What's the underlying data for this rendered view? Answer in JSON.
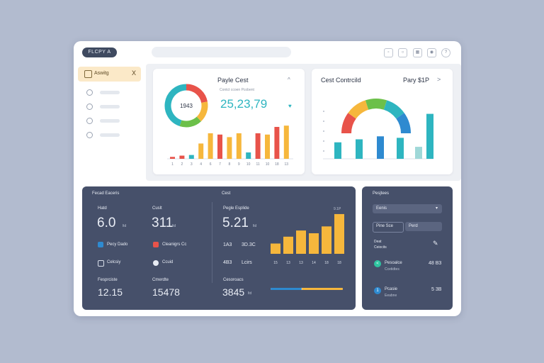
{
  "app": {
    "logo_label": "FLCPY A"
  },
  "toolbar": {
    "icons": [
      "bell-icon",
      "chat-icon",
      "calendar-icon",
      "help-icon"
    ]
  },
  "sidebar": {
    "active_item": {
      "label": "Aswitg",
      "icon": "folder-icon",
      "close": "X"
    }
  },
  "card_left": {
    "title": "Payle Cest",
    "subtitle": "Contct ccoen Pcobent",
    "donut_label": "1943",
    "big_value": "25,23,79",
    "chevron": "^",
    "chart_data": {
      "type": "bar",
      "categories": [
        "1",
        "2",
        "3",
        "4",
        "5",
        "6",
        "7",
        "8",
        "9",
        "10",
        "11",
        "12",
        "13"
      ],
      "values": [
        3,
        5,
        6,
        24,
        40,
        38,
        34,
        40,
        10,
        40,
        38,
        50,
        52
      ],
      "colors": [
        "#e8534a",
        "#e8534a",
        "#2eb5c0",
        "#f6b73c",
        "#f6b73c",
        "#e8534a",
        "#f6b73c",
        "#f6b73c",
        "#2eb5c0",
        "#e8534a",
        "#f6b73c",
        "#e8534a",
        "#f6b73c"
      ],
      "tick_labels": [
        "1",
        "2",
        "3",
        "4",
        "6",
        "7",
        "8",
        "9",
        "10",
        "11",
        "10",
        "18",
        "13"
      ],
      "ylim": [
        0,
        60
      ]
    },
    "donut_segments": [
      {
        "value": 0.22,
        "color": "#e8534a"
      },
      {
        "value": 0.16,
        "color": "#f6b73c"
      },
      {
        "value": 0.17,
        "color": "#6cc04a"
      },
      {
        "value": 0.45,
        "color": "#2eb5c0"
      }
    ]
  },
  "card_right": {
    "title": "Cest Contrcild",
    "value_label": "Pary $1P",
    "chevron": ">",
    "chart_data": {
      "type": "bar",
      "categories": [
        "1",
        "2",
        "3",
        "4",
        "5",
        "6"
      ],
      "values": [
        22,
        26,
        30,
        28,
        16,
        60
      ],
      "colors": [
        "#2eb5c0",
        "#2eb5c0",
        "#2e8ad0",
        "#2eb5c0",
        "#9fd8d8",
        "#2eb5c0"
      ],
      "ylim": [
        0,
        70
      ]
    },
    "gauge_segments": [
      "#e8534a",
      "#f6b73c",
      "#6cc04a",
      "#2eb5c0",
      "#2e8ad0"
    ]
  },
  "stats_panel": {
    "title": "Fecad Eaceris",
    "sub_title": "Cest",
    "stat1": {
      "label": "Hatd",
      "value": "6.0",
      "unit": "ltd"
    },
    "stat2": {
      "label": "Cuslt",
      "value": "311",
      "unit": "ltd"
    },
    "stat3": {
      "label": "Pegle Esplide",
      "value": "5.21",
      "unit": "ltd"
    },
    "row1": {
      "left_label": "Pecy Dado",
      "right_label": "Cleanigrs Cc"
    },
    "row2": {
      "left_label": "Celcsiy",
      "right_label": "Ccuid"
    },
    "mid_row1": {
      "left": "1A3",
      "right": "3D.3C"
    },
    "mid_row2": {
      "left": "4B3",
      "right": "Lcirs"
    },
    "stat4": {
      "label": "Fesprciste",
      "value": "12.15"
    },
    "stat5": {
      "label": "Cmerdte",
      "value": "15478"
    },
    "stat6": {
      "label": "Cesoroacs",
      "value": "3845",
      "unit": "ltd"
    },
    "mini_chart_label": "9.1P",
    "chart_data": {
      "type": "bar",
      "categories": [
        "15",
        "13",
        "13",
        "14",
        "18",
        "18"
      ],
      "values": [
        15,
        25,
        34,
        30,
        40,
        58
      ],
      "ylim": [
        0,
        60
      ]
    },
    "progress": 0.72
  },
  "side_panel": {
    "title": "Pesjtees",
    "select_value": "Eenis",
    "field1": "Pine Sce",
    "field2": "Perd",
    "section_label": "Deat\nCeiocits",
    "edit_icon": "pencil-icon",
    "item1": {
      "name": "Pesoalce",
      "sub": "Ccetidtes",
      "value": "48 B3",
      "dot_color": "#2ec4a0",
      "glyph": "<"
    },
    "item2": {
      "name": "Pcasie",
      "sub": "Eeabne",
      "value": "5 3B",
      "dot_color": "#2e8ad0",
      "glyph": "1"
    }
  }
}
